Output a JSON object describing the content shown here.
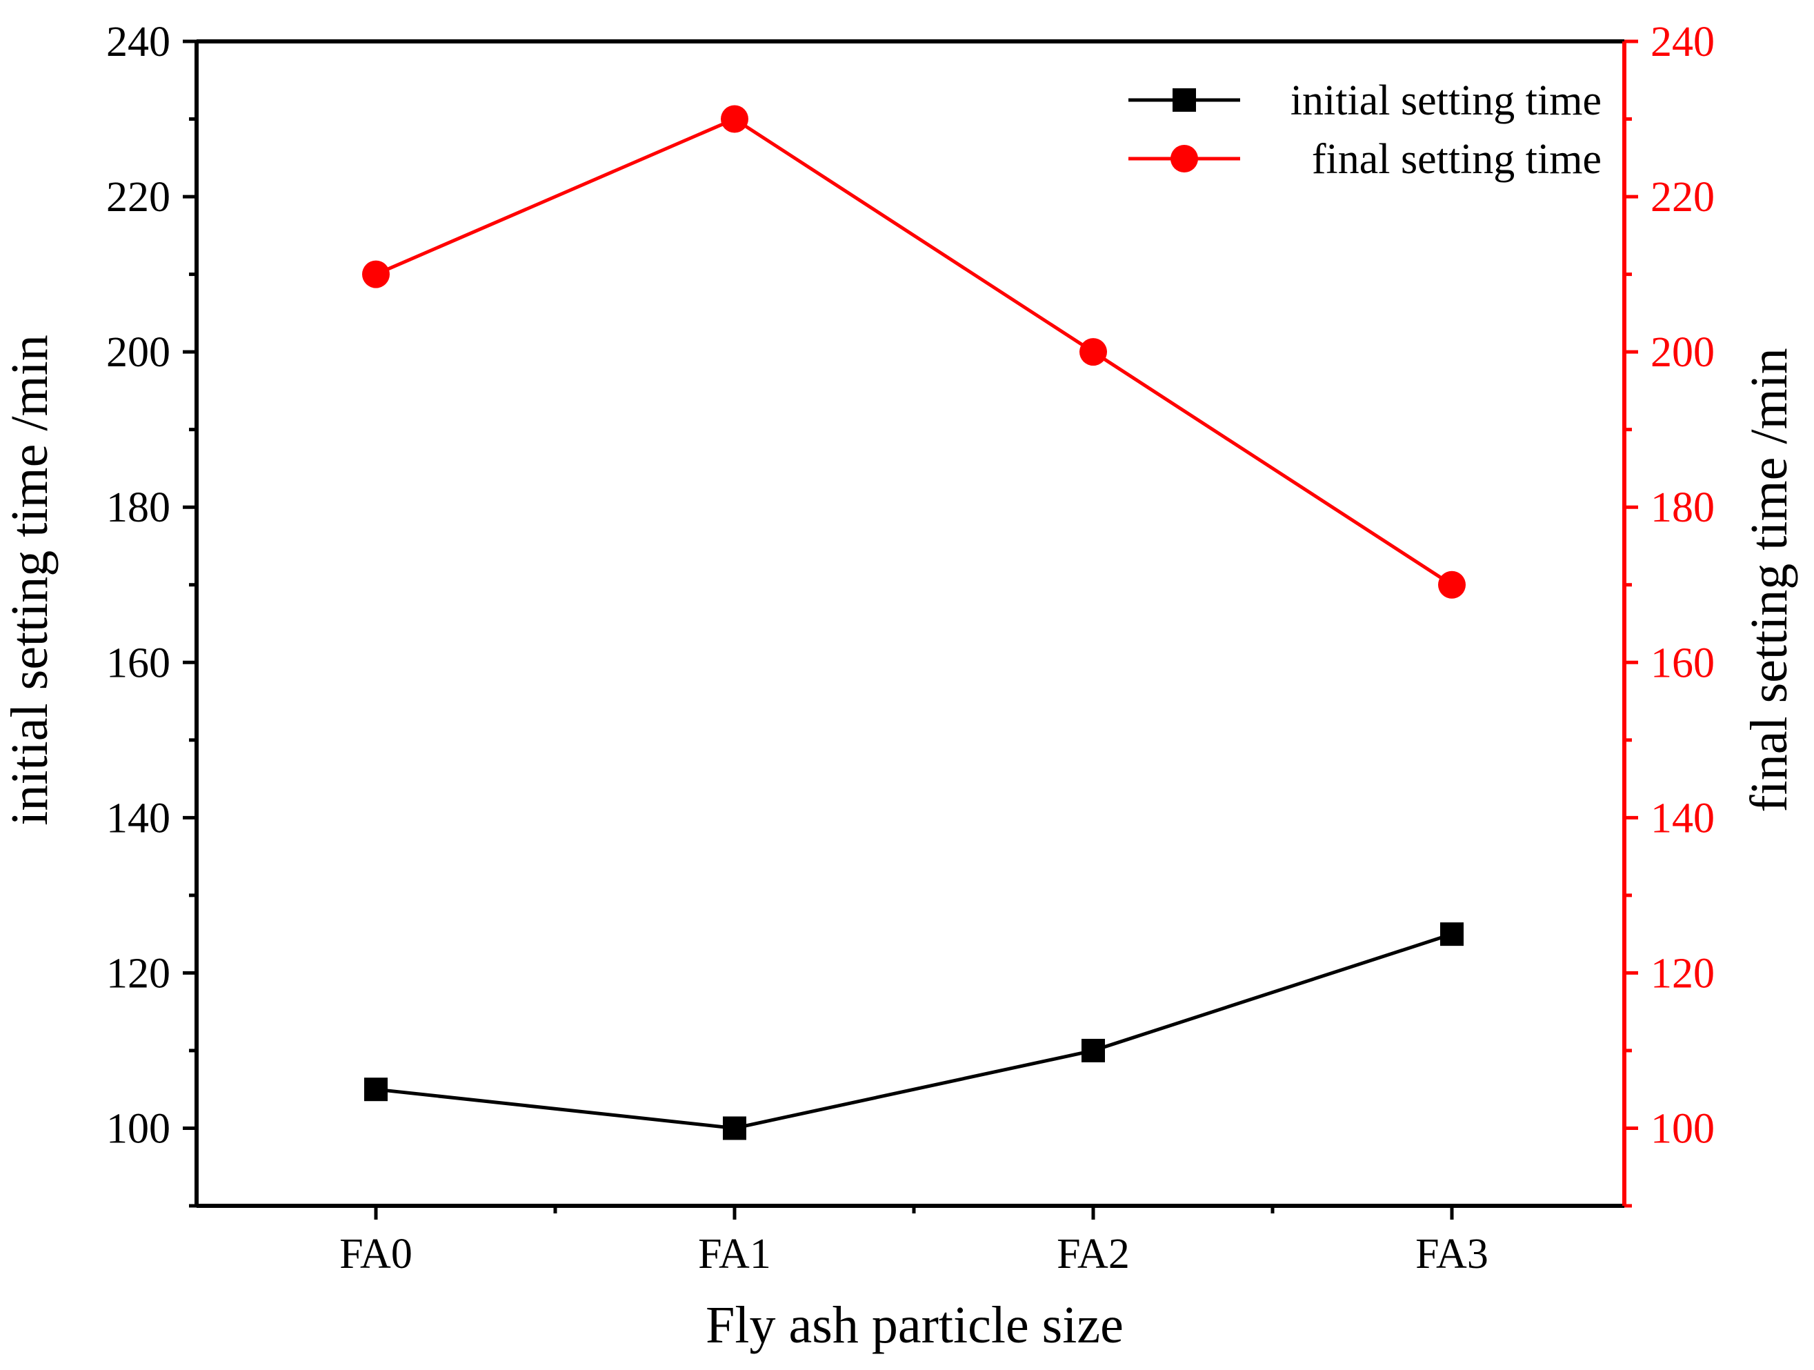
{
  "chart_data": {
    "type": "line",
    "title": "",
    "categories": [
      "FA0",
      "FA1",
      "FA2",
      "FA3"
    ],
    "xlabel": "Fly ash particle size",
    "ylabel_left": "initial setting time /min",
    "ylabel_right": "final setting time /min",
    "ylim": [
      90,
      240
    ],
    "yticks": [
      100,
      120,
      140,
      160,
      180,
      200,
      220,
      240
    ],
    "yticks_labels": [
      "100",
      "120",
      "140",
      "160",
      "180",
      "200",
      "220",
      "240"
    ],
    "legend_position": "top-right",
    "grid": false,
    "series": [
      {
        "name": "initial setting time",
        "axis": "left",
        "marker": "square",
        "color": "#000000",
        "values": [
          105,
          100,
          110,
          125
        ]
      },
      {
        "name": "final setting time",
        "axis": "right",
        "marker": "circle",
        "color": "#ff0000",
        "values": [
          210,
          230,
          200,
          170
        ]
      }
    ]
  },
  "colors": {
    "left_axis": "#000000",
    "right_axis": "#ff0000"
  }
}
